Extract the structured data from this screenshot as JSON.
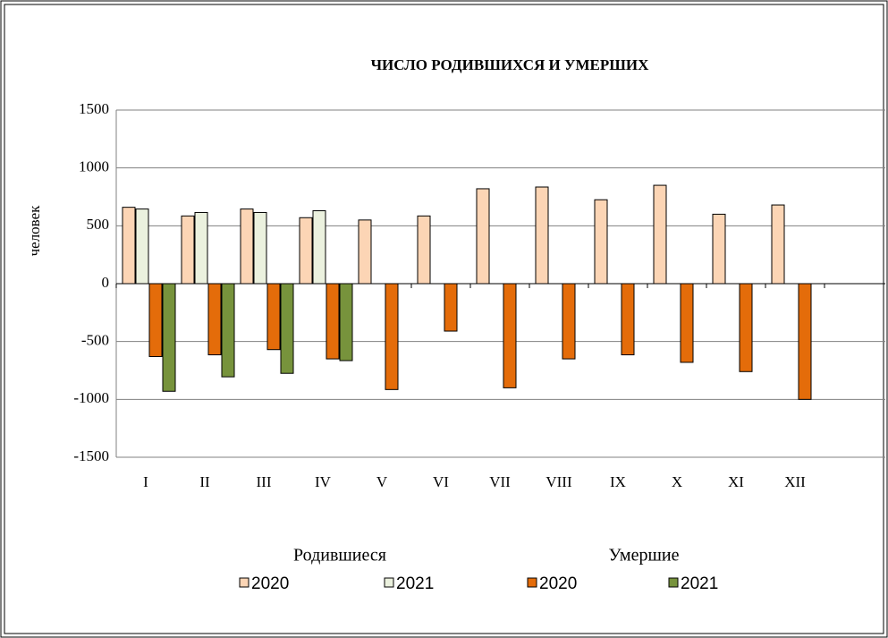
{
  "chart_data": {
    "type": "bar",
    "title": "ЧИСЛО РОДИВШИХСЯ И УМЕРШИХ",
    "y_label": "человек",
    "categories": [
      "I",
      "II",
      "III",
      "IV",
      "V",
      "VI",
      "VII",
      "VIII",
      "IX",
      "X",
      "XI",
      "XII"
    ],
    "legend_groups": [
      "Родившиеся",
      "Умершие"
    ],
    "series": [
      {
        "name": "2020",
        "color": "#fcd5b5",
        "values": [
          660,
          585,
          645,
          570,
          550,
          585,
          820,
          835,
          725,
          850,
          600,
          680
        ]
      },
      {
        "name": "2021",
        "color": "#ebf1de",
        "values": [
          645,
          615,
          615,
          630,
          null,
          null,
          null,
          null,
          null,
          null,
          null,
          null
        ]
      },
      {
        "name": "2020",
        "color": "#e46c0a",
        "values": [
          -630,
          -615,
          -570,
          -650,
          -915,
          -410,
          -900,
          -650,
          -615,
          -680,
          -760,
          -1000
        ]
      },
      {
        "name": "2021",
        "color": "#77933c",
        "values": [
          -930,
          -805,
          -775,
          -665,
          null,
          null,
          null,
          null,
          null,
          null,
          null,
          null
        ]
      }
    ],
    "ylim": [
      -1500,
      1500
    ],
    "yticks": [
      -1500,
      -1000,
      -500,
      0,
      500,
      1000,
      1500
    ],
    "grid": true
  }
}
